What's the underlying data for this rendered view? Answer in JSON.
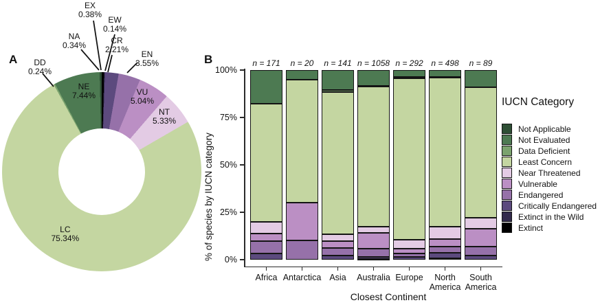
{
  "panels": {
    "a_label": "A",
    "b_label": "B"
  },
  "colors": {
    "Not Applicable": "#2e4f35",
    "Not Evaluated": "#4d7a52",
    "Data Deficient": "#7ba36e",
    "Least Concern": "#c4d6a1",
    "Near Threatened": "#e3cbe4",
    "Vulnerable": "#bb8fc4",
    "Endangered": "#9671a9",
    "Critically Endangered": "#5c4a7e",
    "Extinct in the Wild": "#322a4c",
    "Extinct": "#000000"
  },
  "legend": {
    "title": "IUCN Category",
    "items": [
      {
        "label": "Not Applicable"
      },
      {
        "label": "Not Evaluated"
      },
      {
        "label": "Data Deficient"
      },
      {
        "label": "Least Concern"
      },
      {
        "label": "Near Threatened"
      },
      {
        "label": "Vulnerable"
      },
      {
        "label": "Endangered"
      },
      {
        "label": "Critically Endangered"
      },
      {
        "label": "Extinct in the Wild"
      },
      {
        "label": "Extinct"
      }
    ]
  },
  "chart_data": [
    {
      "type": "pie",
      "subtype": "donut",
      "panel": "A",
      "units": "% of all species",
      "order": "clockwise from 12 o'clock",
      "segments": [
        {
          "code": "EX",
          "category": "Extinct",
          "value": 0.38
        },
        {
          "code": "EW",
          "category": "Extinct in the Wild",
          "value": 0.14
        },
        {
          "code": "CR",
          "category": "Critically Endangered",
          "value": 2.21
        },
        {
          "code": "EN",
          "category": "Endangered",
          "value": 3.55
        },
        {
          "code": "VU",
          "category": "Vulnerable",
          "value": 5.04
        },
        {
          "code": "NT",
          "category": "Near Threatened",
          "value": 5.33
        },
        {
          "code": "LC",
          "category": "Least Concern",
          "value": 75.34
        },
        {
          "code": "DD",
          "category": "Data Deficient",
          "value": 0.24
        },
        {
          "code": "NE",
          "category": "Not Evaluated",
          "value": 7.44
        },
        {
          "code": "NA",
          "category": "Not Applicable",
          "value": 0.34
        }
      ]
    },
    {
      "type": "bar",
      "subtype": "stacked-100percent",
      "panel": "B",
      "xlabel": "Closest Continent",
      "ylabel": "% of species by IUCN category",
      "ylim": [
        0,
        100
      ],
      "yticks": [
        {
          "pct": 0,
          "label": "0%"
        },
        {
          "pct": 25,
          "label": "25%"
        },
        {
          "pct": 50,
          "label": "50%"
        },
        {
          "pct": 75,
          "label": "75%"
        },
        {
          "pct": 100,
          "label": "100%"
        }
      ],
      "bars": [
        {
          "continent": "Africa",
          "n_label": "n = 171",
          "segments_top_to_bottom": [
            {
              "category": "Not Evaluated",
              "pct": 17.6
            },
            {
              "category": "Least Concern",
              "pct": 62.4
            },
            {
              "category": "Near Threatened",
              "pct": 6.2
            },
            {
              "category": "Vulnerable",
              "pct": 4.0
            },
            {
              "category": "Endangered",
              "pct": 6.6
            },
            {
              "category": "Critically Endangered",
              "pct": 3.2
            }
          ]
        },
        {
          "continent": "Antarctica",
          "n_label": "n = 20",
          "segments_top_to_bottom": [
            {
              "category": "Not Evaluated",
              "pct": 5.0
            },
            {
              "category": "Least Concern",
              "pct": 65.0
            },
            {
              "category": "Vulnerable",
              "pct": 20.0
            },
            {
              "category": "Endangered",
              "pct": 10.0
            }
          ]
        },
        {
          "continent": "Asia",
          "n_label": "n = 141",
          "segments_top_to_bottom": [
            {
              "category": "Not Evaluated",
              "pct": 10.4
            },
            {
              "category": "Data Deficient",
              "pct": 1.2
            },
            {
              "category": "Least Concern",
              "pct": 75.0
            },
            {
              "category": "Near Threatened",
              "pct": 3.6
            },
            {
              "category": "Vulnerable",
              "pct": 3.6
            },
            {
              "category": "Endangered",
              "pct": 4.0
            },
            {
              "category": "Critically Endangered",
              "pct": 2.2
            }
          ]
        },
        {
          "continent": "Australia",
          "n_label": "n = 1058",
          "segments_top_to_bottom": [
            {
              "category": "Not Evaluated",
              "pct": 8.3
            },
            {
              "category": "Data Deficient",
              "pct": 0.4
            },
            {
              "category": "Least Concern",
              "pct": 73.8
            },
            {
              "category": "Near Threatened",
              "pct": 3.5
            },
            {
              "category": "Vulnerable",
              "pct": 8.1
            },
            {
              "category": "Endangered",
              "pct": 4.3
            },
            {
              "category": "Critically Endangered",
              "pct": 1.1
            },
            {
              "category": "Extinct in the Wild",
              "pct": 0.3
            },
            {
              "category": "Extinct",
              "pct": 0.2
            }
          ]
        },
        {
          "continent": "Europe",
          "n_label": "n = 292",
          "segments_top_to_bottom": [
            {
              "category": "Not Evaluated",
              "pct": 3.8
            },
            {
              "category": "Data Deficient",
              "pct": 0.5
            },
            {
              "category": "Least Concern",
              "pct": 85.3
            },
            {
              "category": "Near Threatened",
              "pct": 4.5
            },
            {
              "category": "Vulnerable",
              "pct": 2.6
            },
            {
              "category": "Endangered",
              "pct": 2.0
            },
            {
              "category": "Critically Endangered",
              "pct": 1.3
            }
          ]
        },
        {
          "continent": "North America",
          "n_label": "n = 498",
          "segments_top_to_bottom": [
            {
              "category": "Not Evaluated",
              "pct": 3.6
            },
            {
              "category": "Data Deficient",
              "pct": 0.4
            },
            {
              "category": "Least Concern",
              "pct": 78.6
            },
            {
              "category": "Near Threatened",
              "pct": 6.6
            },
            {
              "category": "Vulnerable",
              "pct": 4.0
            },
            {
              "category": "Endangered",
              "pct": 3.1
            },
            {
              "category": "Critically Endangered",
              "pct": 3.0
            },
            {
              "category": "Extinct in the Wild",
              "pct": 0.7
            }
          ]
        },
        {
          "continent": "South America",
          "n_label": "n = 89",
          "segments_top_to_bottom": [
            {
              "category": "Not Evaluated",
              "pct": 8.9
            },
            {
              "category": "Least Concern",
              "pct": 69.1
            },
            {
              "category": "Near Threatened",
              "pct": 5.6
            },
            {
              "category": "Vulnerable",
              "pct": 9.6
            },
            {
              "category": "Endangered",
              "pct": 4.5
            },
            {
              "category": "Critically Endangered",
              "pct": 2.3
            }
          ]
        }
      ]
    }
  ]
}
